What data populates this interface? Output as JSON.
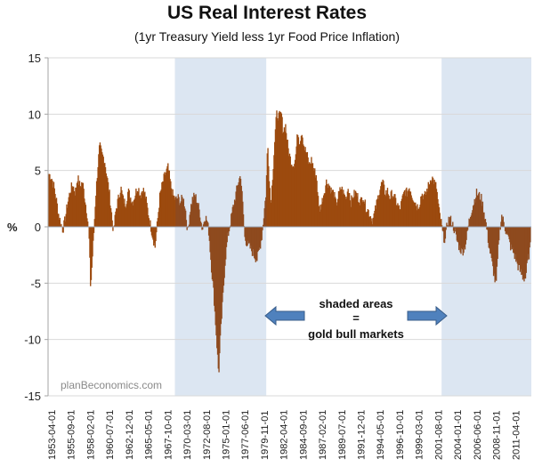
{
  "chart_data": {
    "type": "area",
    "title": "US Real Interest Rates",
    "subtitle": "(1yr Treasury Yield less 1yr Food Price Inflation)",
    "ylabel": "%",
    "xlabel": "",
    "ylim": [
      -15,
      15
    ],
    "yticks": [
      15,
      10,
      5,
      0,
      -5,
      -10,
      -15
    ],
    "xlim_years": [
      1953.25,
      2012.5
    ],
    "grid": true,
    "legend": "none",
    "series_color": "#9C4A0E",
    "shade_color": "#DCE6F2",
    "x_tick_labels": [
      "1953-04-01",
      "1955-09-01",
      "1958-02-01",
      "1960-07-01",
      "1962-12-01",
      "1965-05-01",
      "1967-10-01",
      "1970-03-01",
      "1972-08-01",
      "1975-01-01",
      "1977-06-01",
      "1979-11-01",
      "1982-04-01",
      "1984-09-01",
      "1987-02-01",
      "1989-07-01",
      "1991-12-01",
      "1994-05-01",
      "1996-10-01",
      "1999-03-01",
      "2001-08-01",
      "2004-01-01",
      "2006-06-01",
      "2008-11-01",
      "2011-04-01"
    ],
    "shaded_periods": [
      {
        "label": "gold bull market",
        "start_year": 1968.8,
        "end_year": 1980.0
      },
      {
        "label": "gold bull market",
        "start_year": 2001.5,
        "end_year": 2012.5
      }
    ],
    "series": [
      {
        "name": "Real interest rate",
        "points": [
          [
            1953.3,
            4.7
          ],
          [
            1953.6,
            4.4
          ],
          [
            1953.9,
            3.6
          ],
          [
            1954.2,
            2.4
          ],
          [
            1954.5,
            1.0
          ],
          [
            1954.8,
            0.2
          ],
          [
            1955.0,
            -0.3
          ],
          [
            1955.3,
            0.8
          ],
          [
            1955.6,
            2.2
          ],
          [
            1955.9,
            3.2
          ],
          [
            1956.2,
            3.8
          ],
          [
            1956.5,
            3.0
          ],
          [
            1956.8,
            4.4
          ],
          [
            1957.1,
            3.6
          ],
          [
            1957.4,
            4.0
          ],
          [
            1957.7,
            2.5
          ],
          [
            1958.0,
            1.0
          ],
          [
            1958.2,
            -0.8
          ],
          [
            1958.4,
            -5.5
          ],
          [
            1958.6,
            -3.0
          ],
          [
            1958.8,
            -0.5
          ],
          [
            1959.0,
            2.5
          ],
          [
            1959.3,
            5.5
          ],
          [
            1959.5,
            7.2
          ],
          [
            1959.8,
            6.4
          ],
          [
            1960.1,
            6.0
          ],
          [
            1960.4,
            4.5
          ],
          [
            1960.7,
            3.0
          ],
          [
            1961.0,
            1.0
          ],
          [
            1961.2,
            -0.5
          ],
          [
            1961.5,
            1.5
          ],
          [
            1961.8,
            2.5
          ],
          [
            1962.1,
            3.5
          ],
          [
            1962.4,
            2.4
          ],
          [
            1962.7,
            2.0
          ],
          [
            1963.0,
            3.2
          ],
          [
            1963.3,
            2.6
          ],
          [
            1963.6,
            2.2
          ],
          [
            1963.9,
            3.0
          ],
          [
            1964.2,
            3.6
          ],
          [
            1964.5,
            2.8
          ],
          [
            1964.8,
            3.4
          ],
          [
            1965.1,
            2.8
          ],
          [
            1965.4,
            1.5
          ],
          [
            1965.7,
            0.3
          ],
          [
            1966.0,
            -0.8
          ],
          [
            1966.3,
            -1.8
          ],
          [
            1966.6,
            0.5
          ],
          [
            1966.9,
            2.8
          ],
          [
            1967.2,
            3.8
          ],
          [
            1967.5,
            4.6
          ],
          [
            1967.9,
            5.3
          ],
          [
            1968.2,
            3.8
          ],
          [
            1968.5,
            2.8
          ],
          [
            1968.8,
            2.4
          ],
          [
            1969.1,
            2.6
          ],
          [
            1969.4,
            2.2
          ],
          [
            1969.7,
            2.6
          ],
          [
            1970.0,
            1.8
          ],
          [
            1970.3,
            -0.5
          ],
          [
            1970.6,
            1.5
          ],
          [
            1970.9,
            2.5
          ],
          [
            1971.2,
            2.8
          ],
          [
            1971.5,
            2.2
          ],
          [
            1971.8,
            1.2
          ],
          [
            1972.1,
            -0.3
          ],
          [
            1972.4,
            1.0
          ],
          [
            1972.7,
            0.5
          ],
          [
            1972.9,
            -0.5
          ],
          [
            1973.2,
            -3.5
          ],
          [
            1973.5,
            -6.0
          ],
          [
            1973.8,
            -9.5
          ],
          [
            1974.1,
            -13.2
          ],
          [
            1974.3,
            -10.0
          ],
          [
            1974.6,
            -6.5
          ],
          [
            1974.9,
            -3.0
          ],
          [
            1975.2,
            -1.0
          ],
          [
            1975.5,
            0.2
          ],
          [
            1975.8,
            1.5
          ],
          [
            1976.1,
            2.5
          ],
          [
            1976.5,
            4.0
          ],
          [
            1976.8,
            4.6
          ],
          [
            1977.1,
            1.5
          ],
          [
            1977.3,
            -1.0
          ],
          [
            1977.6,
            -1.5
          ],
          [
            1977.9,
            -1.8
          ],
          [
            1978.2,
            -2.2
          ],
          [
            1978.5,
            -2.6
          ],
          [
            1978.8,
            -2.9
          ],
          [
            1979.1,
            -2.0
          ],
          [
            1979.4,
            -0.8
          ],
          [
            1979.7,
            1.5
          ],
          [
            1979.9,
            3.0
          ],
          [
            1980.1,
            7.5
          ],
          [
            1980.3,
            4.5
          ],
          [
            1980.5,
            2.0
          ],
          [
            1980.8,
            5.5
          ],
          [
            1981.0,
            8.0
          ],
          [
            1981.2,
            10.0
          ],
          [
            1981.5,
            9.8
          ],
          [
            1981.8,
            10.0
          ],
          [
            1982.0,
            8.5
          ],
          [
            1982.3,
            9.0
          ],
          [
            1982.6,
            7.0
          ],
          [
            1982.9,
            6.0
          ],
          [
            1983.2,
            5.5
          ],
          [
            1983.5,
            6.0
          ],
          [
            1983.8,
            8.5
          ],
          [
            1984.0,
            7.5
          ],
          [
            1984.3,
            8.5
          ],
          [
            1984.6,
            7.0
          ],
          [
            1984.9,
            6.5
          ],
          [
            1985.2,
            5.5
          ],
          [
            1985.5,
            6.0
          ],
          [
            1985.8,
            5.0
          ],
          [
            1986.1,
            4.5
          ],
          [
            1986.4,
            1.5
          ],
          [
            1986.7,
            2.0
          ],
          [
            1987.0,
            3.0
          ],
          [
            1987.3,
            4.0
          ],
          [
            1987.6,
            3.8
          ],
          [
            1987.9,
            3.2
          ],
          [
            1988.2,
            3.0
          ],
          [
            1988.5,
            2.0
          ],
          [
            1988.8,
            2.8
          ],
          [
            1989.1,
            3.5
          ],
          [
            1989.4,
            3.0
          ],
          [
            1989.7,
            2.5
          ],
          [
            1990.0,
            3.6
          ],
          [
            1990.3,
            2.2
          ],
          [
            1990.6,
            2.8
          ],
          [
            1990.9,
            3.0
          ],
          [
            1991.2,
            2.6
          ],
          [
            1991.5,
            2.2
          ],
          [
            1991.8,
            2.8
          ],
          [
            1992.1,
            1.8
          ],
          [
            1992.4,
            1.5
          ],
          [
            1992.7,
            1.0
          ],
          [
            1993.0,
            0.6
          ],
          [
            1993.3,
            1.5
          ],
          [
            1993.6,
            2.5
          ],
          [
            1993.9,
            3.5
          ],
          [
            1994.2,
            4.0
          ],
          [
            1994.5,
            3.0
          ],
          [
            1994.8,
            3.2
          ],
          [
            1995.1,
            2.6
          ],
          [
            1995.4,
            3.0
          ],
          [
            1995.7,
            2.5
          ],
          [
            1996.0,
            2.0
          ],
          [
            1996.3,
            1.5
          ],
          [
            1996.6,
            2.4
          ],
          [
            1996.9,
            3.2
          ],
          [
            1997.2,
            3.0
          ],
          [
            1997.5,
            3.6
          ],
          [
            1997.8,
            2.8
          ],
          [
            1998.1,
            2.4
          ],
          [
            1998.4,
            1.8
          ],
          [
            1998.7,
            2.0
          ],
          [
            1999.0,
            3.0
          ],
          [
            1999.3,
            2.6
          ],
          [
            1999.6,
            3.2
          ],
          [
            1999.9,
            3.8
          ],
          [
            2000.2,
            4.5
          ],
          [
            2000.5,
            4.0
          ],
          [
            2000.8,
            3.5
          ],
          [
            2001.1,
            1.5
          ],
          [
            2001.4,
            0.3
          ],
          [
            2001.6,
            -0.8
          ],
          [
            2001.9,
            -1.2
          ],
          [
            2002.1,
            0.3
          ],
          [
            2002.4,
            0.8
          ],
          [
            2002.7,
            0.4
          ],
          [
            2003.0,
            -0.3
          ],
          [
            2003.3,
            -1.2
          ],
          [
            2003.6,
            -1.8
          ],
          [
            2003.9,
            -2.2
          ],
          [
            2004.2,
            -2.0
          ],
          [
            2004.5,
            -1.0
          ],
          [
            2004.8,
            0.5
          ],
          [
            2005.1,
            1.5
          ],
          [
            2005.4,
            2.2
          ],
          [
            2005.7,
            3.0
          ],
          [
            2006.0,
            2.8
          ],
          [
            2006.3,
            2.5
          ],
          [
            2006.6,
            1.5
          ],
          [
            2006.9,
            0.2
          ],
          [
            2007.2,
            -1.5
          ],
          [
            2007.5,
            -2.8
          ],
          [
            2007.8,
            -4.0
          ],
          [
            2008.1,
            -5.3
          ],
          [
            2008.3,
            -3.0
          ],
          [
            2008.5,
            -0.5
          ],
          [
            2008.8,
            1.0
          ],
          [
            2009.0,
            0.5
          ],
          [
            2009.3,
            -0.3
          ],
          [
            2009.6,
            -1.0
          ],
          [
            2009.9,
            -1.8
          ],
          [
            2010.2,
            -2.2
          ],
          [
            2010.5,
            -2.8
          ],
          [
            2010.8,
            -3.5
          ],
          [
            2011.1,
            -4.0
          ],
          [
            2011.4,
            -4.5
          ],
          [
            2011.7,
            -4.6
          ],
          [
            2012.0,
            -3.0
          ],
          [
            2012.3,
            -1.8
          ]
        ]
      }
    ],
    "annotation": {
      "line1": "shaded areas",
      "line2": "=",
      "line3": "gold bull markets"
    },
    "watermark": "planBeconomics.com"
  }
}
